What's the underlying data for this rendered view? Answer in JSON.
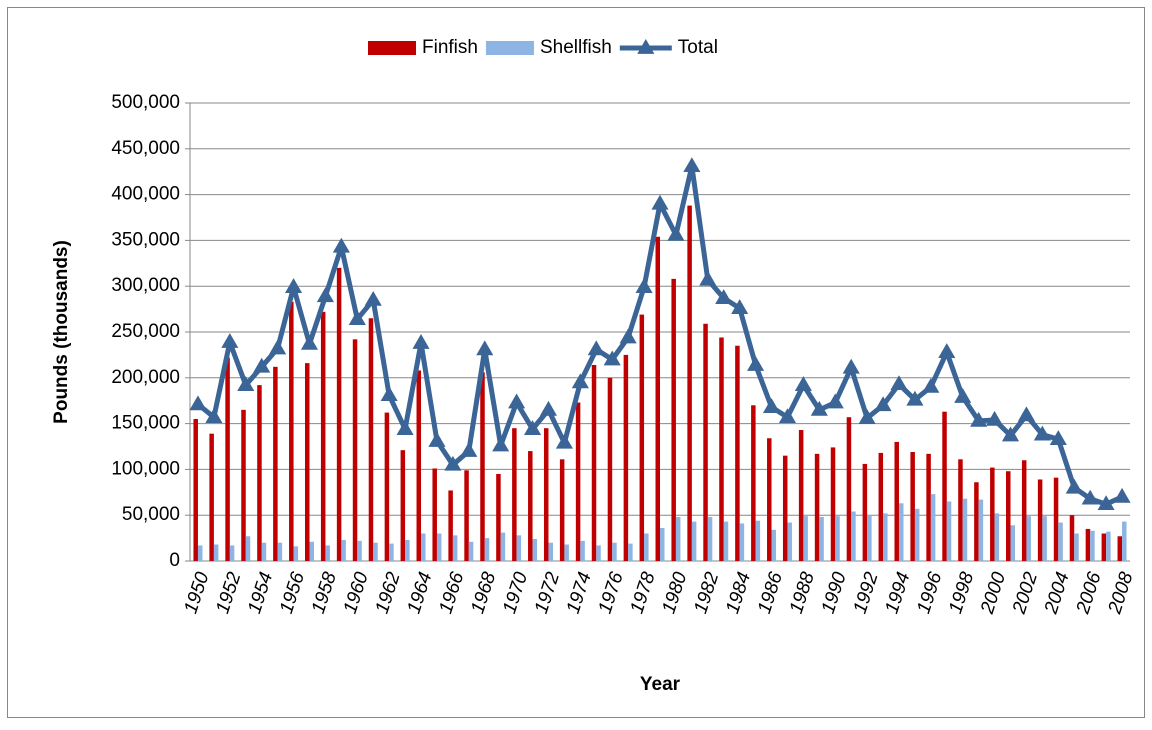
{
  "chart_data": {
    "type": "bar",
    "y_label": "Pounds (thousands)",
    "x_label": "Year",
    "categories": [
      "1950",
      null,
      "1952",
      null,
      "1954",
      null,
      "1956",
      null,
      "1958",
      null,
      "1960",
      null,
      "1962",
      null,
      "1964",
      null,
      "1966",
      null,
      "1968",
      null,
      "1970",
      null,
      "1972",
      null,
      "1974",
      null,
      "1976",
      null,
      "1978",
      null,
      "1980",
      null,
      "1982",
      null,
      "1984",
      null,
      "1986",
      null,
      "1988",
      null,
      "1990",
      null,
      "1992",
      null,
      "1994",
      null,
      "1996",
      null,
      "1998",
      null,
      "2000",
      null,
      "2002",
      null,
      "2004",
      null,
      "2006",
      null,
      "2008"
    ],
    "series": [
      {
        "name": "Finfish",
        "type": "bar",
        "color": "#c00000",
        "values": [
          155000,
          139000,
          222000,
          165000,
          192000,
          212000,
          283000,
          216000,
          272000,
          320000,
          242000,
          265000,
          162000,
          121000,
          208000,
          101000,
          77000,
          99000,
          206000,
          95000,
          145000,
          120000,
          145000,
          111000,
          173000,
          214000,
          200000,
          225000,
          269000,
          354000,
          308000,
          388000,
          259000,
          244000,
          235000,
          170000,
          134000,
          115000,
          143000,
          117000,
          124000,
          157000,
          106000,
          118000,
          130000,
          119000,
          117000,
          163000,
          111000,
          86000,
          102000,
          98000,
          110000,
          89000,
          91000,
          50000,
          35000,
          30000,
          27000
        ]
      },
      {
        "name": "Shellfish",
        "type": "bar",
        "color": "#8eb4e3",
        "values": [
          17000,
          18000,
          17000,
          27000,
          20000,
          20000,
          16000,
          21000,
          17000,
          23000,
          22000,
          20000,
          19000,
          23000,
          30000,
          30000,
          28000,
          21000,
          25000,
          31000,
          28000,
          24000,
          20000,
          18000,
          22000,
          17000,
          20000,
          19000,
          30000,
          36000,
          48000,
          43000,
          48000,
          43000,
          41000,
          44000,
          34000,
          42000,
          49000,
          48000,
          49000,
          54000,
          50000,
          52000,
          63000,
          57000,
          73000,
          65000,
          68000,
          67000,
          52000,
          39000,
          49000,
          49000,
          42000,
          30000,
          33000,
          32000,
          43000
        ]
      },
      {
        "name": "Total",
        "type": "line",
        "color": "#3a6596",
        "values": [
          171000,
          157000,
          239000,
          192000,
          212000,
          232000,
          299000,
          237000,
          289000,
          343000,
          264000,
          285000,
          181000,
          144000,
          238000,
          131000,
          105000,
          120000,
          231000,
          126000,
          173000,
          144000,
          165000,
          129000,
          195000,
          231000,
          220000,
          244000,
          299000,
          390000,
          356000,
          431000,
          307000,
          287000,
          276000,
          214000,
          168000,
          157000,
          192000,
          165000,
          173000,
          211000,
          156000,
          170000,
          193000,
          176000,
          190000,
          228000,
          179000,
          153000,
          154000,
          137000,
          159000,
          138000,
          133000,
          80000,
          68000,
          62000,
          70000
        ]
      }
    ],
    "ylim": [
      0,
      500000
    ],
    "yticks": [
      0,
      {
        "value": 50000,
        "label": "50,000"
      },
      {
        "value": 100000,
        "label": "100,000"
      },
      {
        "value": 150000,
        "label": "150,000"
      },
      {
        "value": 200000,
        "label": "200,000"
      },
      {
        "value": 250000,
        "label": "250,000"
      },
      {
        "value": 300000,
        "label": "300,000"
      },
      {
        "value": 350000,
        "label": "350,000"
      },
      {
        "value": 400000,
        "label": "400,000"
      },
      {
        "value": 450000,
        "label": "450,000"
      },
      {
        "value": 500000,
        "label": "500,000"
      }
    ],
    "grid": true,
    "legend": "top"
  }
}
